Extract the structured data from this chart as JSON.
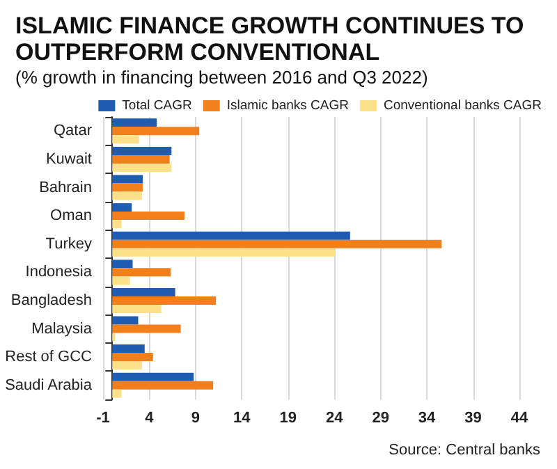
{
  "chart_data": {
    "type": "bar",
    "orientation": "horizontal",
    "title": "ISLAMIC FINANCE GROWTH CONTINUES TO OUTPERFORM CONVENTIONAL",
    "subtitle": "(% growth in financing between 2016 and Q3 2022)",
    "categories": [
      "Qatar",
      "Kuwait",
      "Bahrain",
      "Oman",
      "Turkey",
      "Indonesia",
      "Bangladesh",
      "Malaysia",
      "Rest of GCC",
      "Saudi Arabia"
    ],
    "series": [
      {
        "name": "Total CAGR",
        "color": "#1f5bb0",
        "values": [
          4.8,
          6.4,
          3.3,
          2.1,
          25.7,
          2.2,
          6.8,
          2.8,
          3.5,
          8.8
        ]
      },
      {
        "name": "Islamic banks CAGR",
        "color": "#f07f1c",
        "values": [
          9.4,
          6.2,
          3.3,
          7.8,
          35.6,
          6.3,
          11.2,
          7.4,
          4.4,
          10.9
        ]
      },
      {
        "name": "Conventional banks CAGR",
        "color": "#fde08a",
        "values": [
          2.9,
          6.4,
          3.2,
          1.0,
          24.1,
          1.9,
          5.3,
          0.3,
          3.2,
          1.0
        ]
      }
    ],
    "xlim": [
      -1,
      44
    ],
    "xticks": [
      -1,
      4,
      9,
      14,
      19,
      24,
      29,
      34,
      39,
      44
    ],
    "grid": "x",
    "legend": "top right",
    "annotations": [
      "Source: Central banks"
    ]
  }
}
